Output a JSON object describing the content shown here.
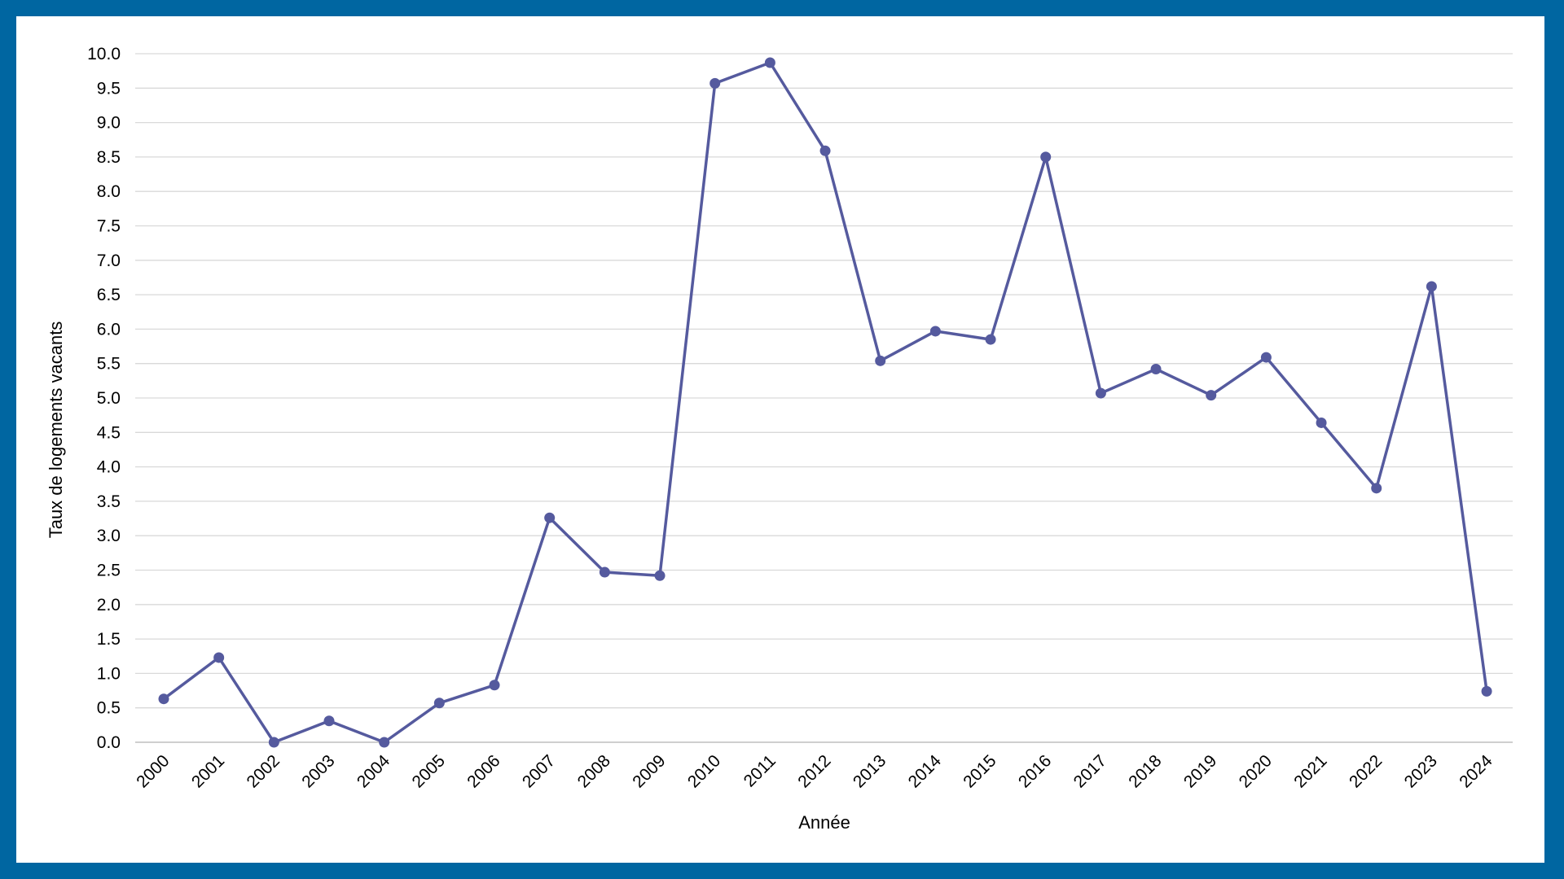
{
  "chart_data": {
    "type": "line",
    "title": "",
    "xlabel": "Année",
    "ylabel": "Taux de logements vacants",
    "ylim": [
      0,
      10
    ],
    "ytick_step": 0.5,
    "y_tick_decimals": 1,
    "grid": true,
    "legend": "none",
    "x": [
      "2000",
      "2001",
      "2002",
      "2003",
      "2004",
      "2005",
      "2006",
      "2007",
      "2008",
      "2009",
      "2010",
      "2011",
      "2012",
      "2013",
      "2014",
      "2015",
      "2016",
      "2017",
      "2018",
      "2019",
      "2020",
      "2021",
      "2022",
      "2023",
      "2024"
    ],
    "series": [
      {
        "values": [
          0.63,
          1.23,
          0.0,
          0.31,
          0.0,
          0.57,
          0.83,
          3.26,
          2.47,
          2.42,
          9.57,
          9.87,
          8.59,
          5.54,
          5.97,
          5.85,
          8.5,
          5.07,
          5.42,
          5.04,
          5.59,
          4.64,
          3.69,
          6.62,
          0.74
        ],
        "color": "#555a9e"
      }
    ],
    "colors": {
      "border": "#0066a1",
      "grid": "#d9d9d9",
      "axis": "#bfbfbf"
    }
  }
}
